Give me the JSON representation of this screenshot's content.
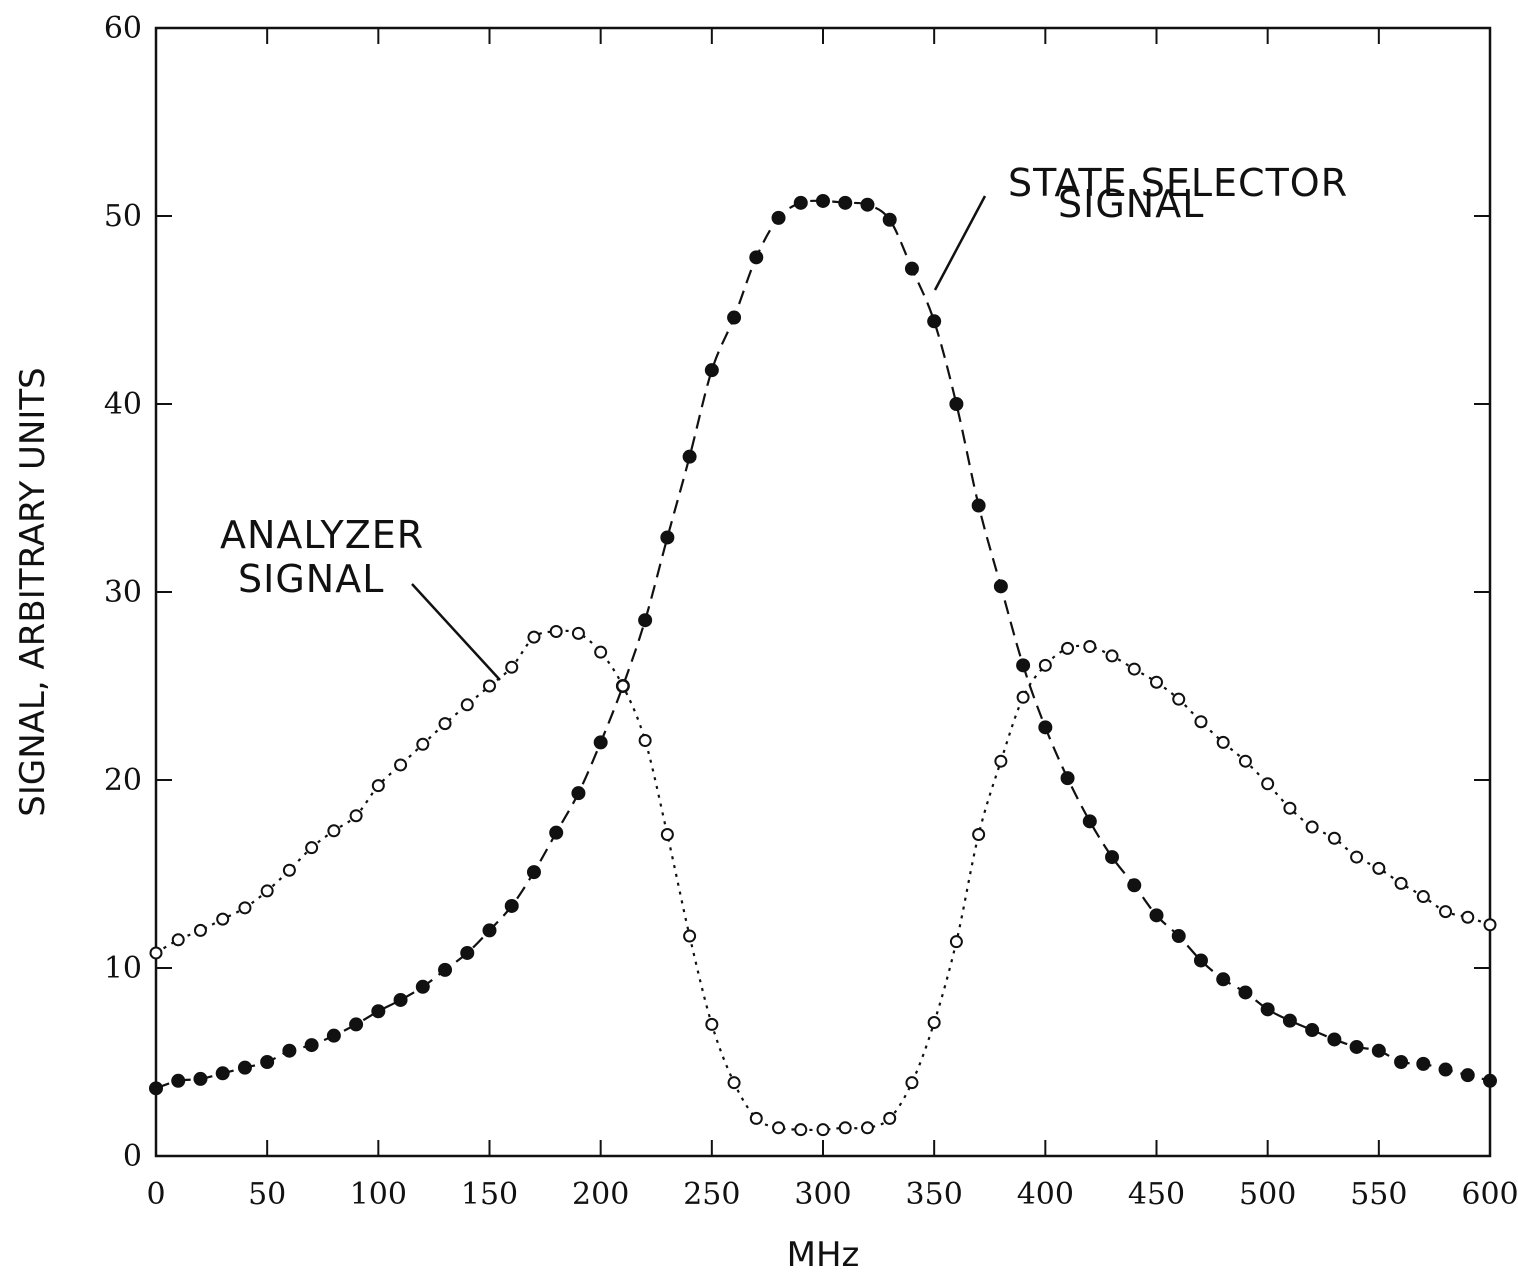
{
  "chart_data": {
    "type": "scatter",
    "title": "",
    "xlabel": "MHz",
    "ylabel": "SIGNAL, ARBITRARY UNITS",
    "xlim": [
      0,
      600
    ],
    "ylim": [
      0,
      60
    ],
    "xticks": [
      0,
      50,
      100,
      150,
      200,
      250,
      300,
      350,
      400,
      450,
      500,
      550,
      600
    ],
    "yticks": [
      0,
      10,
      20,
      30,
      40,
      50,
      60
    ],
    "grid": false,
    "annotations": {
      "state_line1": "STATE SELECTOR",
      "state_line2": "SIGNAL",
      "analyzer_line1": "ANALYZER",
      "analyzer_line2": "SIGNAL"
    },
    "x": [
      0,
      10,
      20,
      30,
      40,
      50,
      60,
      70,
      80,
      90,
      100,
      110,
      120,
      130,
      140,
      150,
      160,
      170,
      180,
      190,
      200,
      210,
      220,
      230,
      240,
      250,
      260,
      270,
      280,
      290,
      300,
      310,
      320,
      330,
      340,
      350,
      360,
      370,
      380,
      390,
      400,
      410,
      420,
      430,
      440,
      450,
      460,
      470,
      480,
      490,
      500,
      510,
      520,
      530,
      540,
      550,
      560,
      570,
      580,
      590,
      600
    ],
    "series": [
      {
        "marker": "filled",
        "line": "dashed",
        "values": [
          3.6,
          4.0,
          4.1,
          4.4,
          4.7,
          5.0,
          5.6,
          5.9,
          6.4,
          7.0,
          7.7,
          8.3,
          9.0,
          9.9,
          10.8,
          12.0,
          13.3,
          15.1,
          17.2,
          19.3,
          22.0,
          25.0,
          28.5,
          32.9,
          37.2,
          41.8,
          44.6,
          47.8,
          49.9,
          50.7,
          50.8,
          50.7,
          50.6,
          49.8,
          47.2,
          44.4,
          40.0,
          34.6,
          30.3,
          26.1,
          22.8,
          20.1,
          17.8,
          15.9,
          14.4,
          12.8,
          11.7,
          10.4,
          9.4,
          8.7,
          7.8,
          7.2,
          6.7,
          6.2,
          5.8,
          5.6,
          5.0,
          4.9,
          4.6,
          4.3,
          4.0
        ]
      },
      {
        "marker": "open",
        "line": "dotted",
        "values": [
          10.8,
          11.5,
          12.0,
          12.6,
          13.2,
          14.1,
          15.2,
          16.4,
          17.3,
          18.1,
          19.7,
          20.8,
          21.9,
          23.0,
          24.0,
          25.0,
          26.0,
          27.6,
          27.9,
          27.8,
          26.8,
          25.0,
          22.1,
          17.1,
          11.7,
          7.0,
          3.9,
          2.0,
          1.5,
          1.4,
          1.4,
          1.5,
          1.5,
          2.0,
          3.9,
          7.1,
          11.4,
          17.1,
          21.0,
          24.4,
          26.1,
          27.0,
          27.1,
          26.6,
          25.9,
          25.2,
          24.3,
          23.1,
          22.0,
          21.0,
          19.8,
          18.5,
          17.5,
          16.9,
          15.9,
          15.3,
          14.5,
          13.8,
          13.0,
          12.7,
          12.3
        ]
      }
    ]
  }
}
